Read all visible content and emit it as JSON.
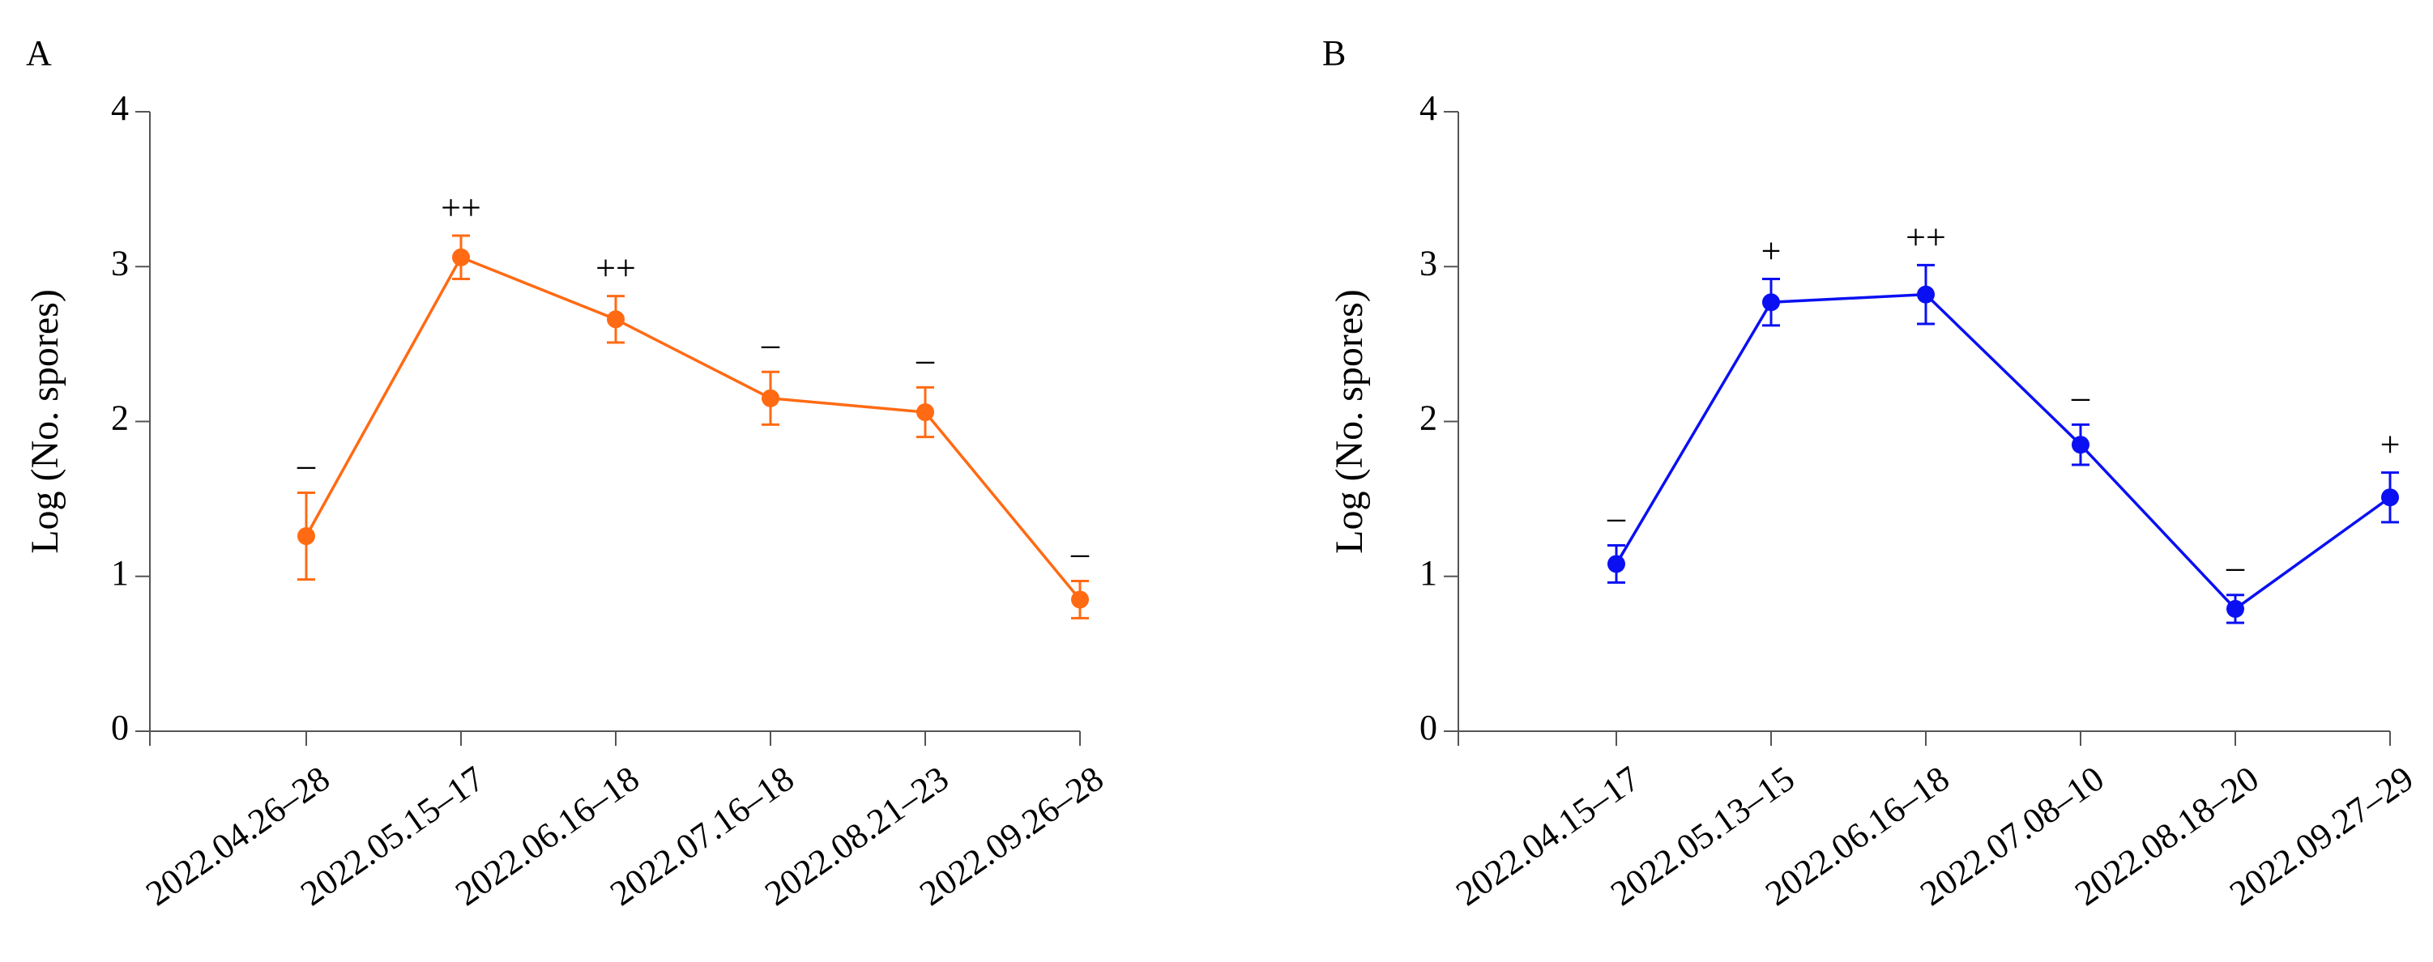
{
  "chart_data": [
    {
      "type": "line",
      "panel_label": "A",
      "title": "",
      "xlabel": "",
      "ylabel": "Log (No. spores)",
      "ylim": [
        0,
        4
      ],
      "yticks": [
        "0",
        "1",
        "2",
        "3",
        "4"
      ],
      "categories": [
        "2022.04.26–28",
        "2022.05.15–17",
        "2022.06.16–18",
        "2022.07.16–18",
        "2022.08.21–23",
        "2022.09.26–28"
      ],
      "color": "#FF6A13",
      "series": [
        {
          "name": "A",
          "values": [
            1.26,
            3.06,
            2.66,
            2.15,
            2.06,
            0.85
          ],
          "error": [
            0.28,
            0.14,
            0.15,
            0.17,
            0.16,
            0.12
          ],
          "significance": [
            "–",
            "++",
            "++",
            "–",
            "–",
            "–"
          ]
        }
      ]
    },
    {
      "type": "line",
      "panel_label": "B",
      "title": "",
      "xlabel": "",
      "ylabel": "Log (No. spores)",
      "ylim": [
        0,
        4
      ],
      "yticks": [
        "0",
        "1",
        "2",
        "3",
        "4"
      ],
      "categories": [
        "2022.04.15–17",
        "2022.05.13–15",
        "2022.06.16–18",
        "2022.07.08–10",
        "2022.08.18–20",
        "2022.09.27–29"
      ],
      "color": "#0A10F2",
      "series": [
        {
          "name": "B",
          "values": [
            1.08,
            2.77,
            2.82,
            1.85,
            0.79,
            1.51
          ],
          "error": [
            0.12,
            0.15,
            0.19,
            0.13,
            0.09,
            0.16
          ],
          "significance": [
            "–",
            "+",
            "++",
            "–",
            "–",
            "+"
          ]
        }
      ]
    }
  ]
}
